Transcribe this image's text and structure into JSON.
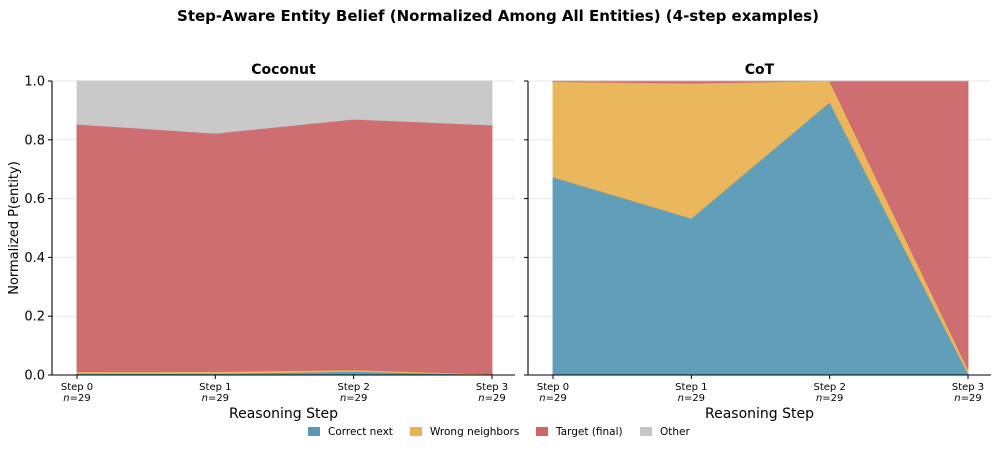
{
  "figure_title": "Step-Aware Entity Belief (Normalized Among All Entities) (4-step examples)",
  "colors": {
    "correct_next": "#5899b5",
    "wrong_neighbors": "#e9b354",
    "target_final": "#cc6669",
    "other": "#c6c6c6"
  },
  "legend": [
    {
      "key": "correct_next",
      "label": "Correct next"
    },
    {
      "key": "wrong_neighbors",
      "label": "Wrong neighbors"
    },
    {
      "key": "target_final",
      "label": "Target (final)"
    },
    {
      "key": "other",
      "label": "Other"
    }
  ],
  "chart_data": [
    {
      "type": "area",
      "stacked": true,
      "title": "Coconut",
      "xlabel": "Reasoning Step",
      "ylabel": "Normalized P(entity)",
      "ylim": [
        0,
        1.0
      ],
      "yticks": [
        "0.0",
        "0.2",
        "0.4",
        "0.6",
        "0.8",
        "1.0"
      ],
      "categories": [
        "Step 0",
        "Step 1",
        "Step 2",
        "Step 3"
      ],
      "n_labels": [
        "n=29",
        "n=29",
        "n=29",
        "n=29"
      ],
      "series": [
        {
          "name": "Correct next",
          "key": "correct_next",
          "values": [
            0.005,
            0.005,
            0.012,
            0.001
          ]
        },
        {
          "name": "Wrong neighbors",
          "key": "wrong_neighbors",
          "values": [
            0.006,
            0.007,
            0.006,
            0.002
          ]
        },
        {
          "name": "Target (final)",
          "key": "target_final",
          "values": [
            0.842,
            0.81,
            0.852,
            0.847
          ]
        },
        {
          "name": "Other",
          "key": "other",
          "values": [
            0.147,
            0.178,
            0.13,
            0.15
          ]
        }
      ]
    },
    {
      "type": "area",
      "stacked": true,
      "title": "CoT",
      "xlabel": "Reasoning Step",
      "ylabel": "",
      "ylim": [
        0,
        1.0
      ],
      "yticks": [],
      "categories": [
        "Step 0",
        "Step 1",
        "Step 2",
        "Step 3"
      ],
      "n_labels": [
        "n=29",
        "n=29",
        "n=29",
        "n=29"
      ],
      "series": [
        {
          "name": "Correct next",
          "key": "correct_next",
          "values": [
            0.673,
            0.533,
            0.928,
            0.005
          ]
        },
        {
          "name": "Wrong neighbors",
          "key": "wrong_neighbors",
          "values": [
            0.325,
            0.46,
            0.072,
            0.015
          ]
        },
        {
          "name": "Target (final)",
          "key": "target_final",
          "values": [
            0.002,
            0.007,
            0.0,
            0.98
          ]
        },
        {
          "name": "Other",
          "key": "other",
          "values": [
            0.0,
            0.0,
            0.0,
            0.0
          ]
        }
      ]
    }
  ]
}
